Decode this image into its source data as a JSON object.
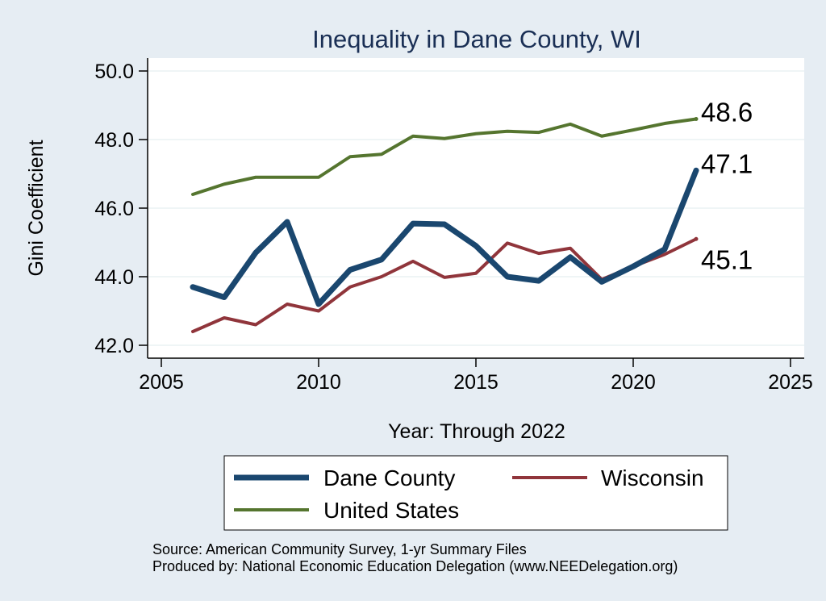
{
  "chart_data": {
    "type": "line",
    "title": "Inequality in Dane County, WI",
    "xlabel": "Year: Through 2022",
    "ylabel": "Gini Coefficient",
    "xlim": [
      2005,
      2025
    ],
    "ylim": [
      42.0,
      50.0
    ],
    "xticks": [
      2005,
      2010,
      2015,
      2020,
      2025
    ],
    "yticks": [
      42.0,
      44.0,
      46.0,
      48.0,
      50.0
    ],
    "ytick_labels": [
      "42.0",
      "44.0",
      "46.0",
      "48.0",
      "50.0"
    ],
    "grid": true,
    "legend_position": "bottom",
    "x": [
      2006,
      2007,
      2008,
      2009,
      2010,
      2011,
      2012,
      2013,
      2014,
      2015,
      2016,
      2017,
      2018,
      2019,
      2020,
      2021,
      2022
    ],
    "series": [
      {
        "name": "Dane County",
        "color": "#1a476f",
        "values": [
          43.7,
          43.4,
          44.7,
          45.6,
          43.2,
          44.2,
          44.5,
          45.55,
          45.53,
          44.9,
          44.0,
          43.88,
          44.57,
          43.85,
          44.3,
          44.8,
          47.1
        ],
        "end_label": "47.1"
      },
      {
        "name": "Wisconsin",
        "color": "#90353b",
        "values": [
          42.4,
          42.8,
          42.6,
          43.2,
          43.0,
          43.7,
          44.0,
          44.45,
          43.98,
          44.1,
          44.98,
          44.68,
          44.83,
          43.92,
          44.3,
          44.65,
          45.1
        ],
        "end_label": "45.1"
      },
      {
        "name": "United States",
        "color": "#55752f",
        "values": [
          46.4,
          46.7,
          46.9,
          46.9,
          46.9,
          47.5,
          47.57,
          48.1,
          48.03,
          48.17,
          48.24,
          48.21,
          48.45,
          48.1,
          48.28,
          48.47,
          48.6
        ],
        "end_label": "48.6"
      }
    ],
    "source_lines": [
      "Source: American Community Survey, 1-yr Summary Files",
      "Produced by: National Economic Education Delegation (www.NEEDelegation.org)"
    ]
  }
}
